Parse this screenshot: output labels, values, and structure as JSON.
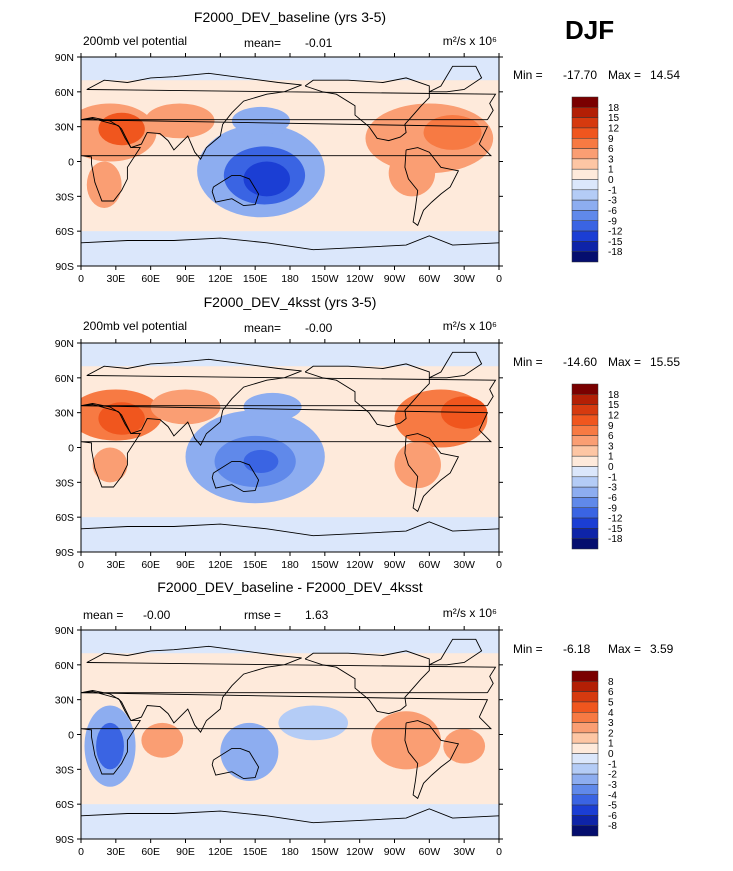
{
  "season": "DJF",
  "chart_data": [
    {
      "type": "heatmap",
      "title": "F2000_DEV_baseline (yrs 3-5)",
      "left_label": "200mb vel potential",
      "stat1_label": "mean=",
      "stat1_value": "-0.01",
      "stat2_label": "",
      "stat2_value": "",
      "units": "m²/s x 10⁶",
      "min_label": "Min =",
      "min_value": "-17.70",
      "max_label": "Max =",
      "max_value": "14.54",
      "x_ticks": [
        "0",
        "30E",
        "60E",
        "90E",
        "120E",
        "150E",
        "180",
        "150W",
        "120W",
        "90W",
        "60W",
        "30W",
        "0"
      ],
      "y_ticks": [
        "90N",
        "60N",
        "30N",
        "0",
        "30S",
        "60S",
        "90S"
      ],
      "xlim": [
        0,
        360
      ],
      "ylim": [
        -90,
        90
      ],
      "levels": [
        "18",
        "15",
        "12",
        "9",
        "6",
        "3",
        "1",
        "0",
        "-1",
        "-3",
        "-6",
        "-9",
        "-12",
        "-15",
        "-18"
      ],
      "colors": [
        "#7a0000",
        "#b31f05",
        "#d63a0f",
        "#f0561e",
        "#f77a43",
        "#fa9e73",
        "#fdc6a4",
        "#feeadb",
        "#dbe7fb",
        "#b4ccf6",
        "#8dadf0",
        "#6089ea",
        "#3a64e3",
        "#1b3ed4",
        "#0e24a8",
        "#050e6e"
      ],
      "blobs": [
        {
          "lon": 25,
          "lat": 25,
          "rx": 40,
          "ry": 25,
          "level": 5
        },
        {
          "lon": 35,
          "lat": 28,
          "rx": 20,
          "ry": 14,
          "level": 3
        },
        {
          "lon": 85,
          "lat": 35,
          "rx": 30,
          "ry": 15,
          "level": 5
        },
        {
          "lon": 20,
          "lat": -20,
          "rx": 15,
          "ry": 20,
          "level": 5
        },
        {
          "lon": 300,
          "lat": 20,
          "rx": 55,
          "ry": 30,
          "level": 5
        },
        {
          "lon": 320,
          "lat": 25,
          "rx": 25,
          "ry": 15,
          "level": 4
        },
        {
          "lon": 285,
          "lat": -10,
          "rx": 20,
          "ry": 20,
          "level": 5
        },
        {
          "lon": 155,
          "lat": -8,
          "rx": 55,
          "ry": 40,
          "level": 10
        },
        {
          "lon": 158,
          "lat": -12,
          "rx": 35,
          "ry": 25,
          "level": 12
        },
        {
          "lon": 160,
          "lat": -15,
          "rx": 20,
          "ry": 15,
          "level": 13
        },
        {
          "lon": 155,
          "lat": 35,
          "rx": 25,
          "ry": 12,
          "level": 10
        }
      ]
    },
    {
      "type": "heatmap",
      "title": "F2000_DEV_4ksst (yrs 3-5)",
      "left_label": "200mb vel potential",
      "stat1_label": "mean=",
      "stat1_value": "-0.00",
      "stat2_label": "",
      "stat2_value": "",
      "units": "m²/s x 10⁶",
      "min_label": "Min =",
      "min_value": "-14.60",
      "max_label": "Max =",
      "max_value": "15.55",
      "x_ticks": [
        "0",
        "30E",
        "60E",
        "90E",
        "120E",
        "150E",
        "180",
        "150W",
        "120W",
        "90W",
        "60W",
        "30W",
        "0"
      ],
      "y_ticks": [
        "90N",
        "60N",
        "30N",
        "0",
        "30S",
        "60S",
        "90S"
      ],
      "xlim": [
        0,
        360
      ],
      "ylim": [
        -90,
        90
      ],
      "levels": [
        "18",
        "15",
        "12",
        "9",
        "6",
        "3",
        "1",
        "0",
        "-1",
        "-3",
        "-6",
        "-9",
        "-12",
        "-15",
        "-18"
      ],
      "colors": [
        "#7a0000",
        "#b31f05",
        "#d63a0f",
        "#f0561e",
        "#f77a43",
        "#fa9e73",
        "#fdc6a4",
        "#feeadb",
        "#dbe7fb",
        "#b4ccf6",
        "#8dadf0",
        "#6089ea",
        "#3a64e3",
        "#1b3ed4",
        "#0e24a8",
        "#050e6e"
      ],
      "blobs": [
        {
          "lon": 30,
          "lat": 28,
          "rx": 40,
          "ry": 22,
          "level": 4
        },
        {
          "lon": 35,
          "lat": 25,
          "rx": 20,
          "ry": 14,
          "level": 3
        },
        {
          "lon": 90,
          "lat": 35,
          "rx": 30,
          "ry": 15,
          "level": 5
        },
        {
          "lon": 25,
          "lat": -15,
          "rx": 15,
          "ry": 15,
          "level": 5
        },
        {
          "lon": 310,
          "lat": 25,
          "rx": 40,
          "ry": 25,
          "level": 4
        },
        {
          "lon": 330,
          "lat": 30,
          "rx": 20,
          "ry": 14,
          "level": 3
        },
        {
          "lon": 290,
          "lat": -15,
          "rx": 20,
          "ry": 20,
          "level": 5
        },
        {
          "lon": 150,
          "lat": -8,
          "rx": 60,
          "ry": 40,
          "level": 10
        },
        {
          "lon": 150,
          "lat": -12,
          "rx": 35,
          "ry": 22,
          "level": 11
        },
        {
          "lon": 155,
          "lat": -12,
          "rx": 15,
          "ry": 10,
          "level": 12
        },
        {
          "lon": 165,
          "lat": 35,
          "rx": 25,
          "ry": 12,
          "level": 10
        }
      ]
    },
    {
      "type": "heatmap",
      "title": "F2000_DEV_baseline - F2000_DEV_4ksst",
      "left_label": "mean =",
      "stat1_label": "",
      "stat1_value": "-0.00",
      "stat2_label": "rmse =",
      "stat2_value": "1.63",
      "units": "m²/s x 10⁶",
      "min_label": "Min =",
      "min_value": "-6.18",
      "max_label": "Max =",
      "max_value": "3.59",
      "x_ticks": [
        "0",
        "30E",
        "60E",
        "90E",
        "120E",
        "150E",
        "180",
        "150W",
        "120W",
        "90W",
        "60W",
        "30W",
        "0"
      ],
      "y_ticks": [
        "90N",
        "60N",
        "30N",
        "0",
        "30S",
        "60S",
        "90S"
      ],
      "xlim": [
        0,
        360
      ],
      "ylim": [
        -90,
        90
      ],
      "levels": [
        "8",
        "6",
        "5",
        "4",
        "3",
        "2",
        "1",
        "0",
        "-1",
        "-2",
        "-3",
        "-4",
        "-5",
        "-6",
        "-8"
      ],
      "colors": [
        "#7a0000",
        "#b31f05",
        "#d63a0f",
        "#f0561e",
        "#f77a43",
        "#fa9e73",
        "#fdc6a4",
        "#feeadb",
        "#dbe7fb",
        "#b4ccf6",
        "#8dadf0",
        "#6089ea",
        "#3a64e3",
        "#1b3ed4",
        "#0e24a8",
        "#050e6e"
      ],
      "blobs": [
        {
          "lon": 25,
          "lat": -10,
          "rx": 22,
          "ry": 35,
          "level": 10
        },
        {
          "lon": 25,
          "lat": -10,
          "rx": 12,
          "ry": 20,
          "level": 12
        },
        {
          "lon": 70,
          "lat": -5,
          "rx": 18,
          "ry": 15,
          "level": 5
        },
        {
          "lon": 145,
          "lat": -15,
          "rx": 25,
          "ry": 25,
          "level": 10
        },
        {
          "lon": 200,
          "lat": 10,
          "rx": 30,
          "ry": 15,
          "level": 9
        },
        {
          "lon": 280,
          "lat": -5,
          "rx": 30,
          "ry": 25,
          "level": 5
        },
        {
          "lon": 330,
          "lat": -10,
          "rx": 18,
          "ry": 15,
          "level": 5
        }
      ]
    }
  ]
}
